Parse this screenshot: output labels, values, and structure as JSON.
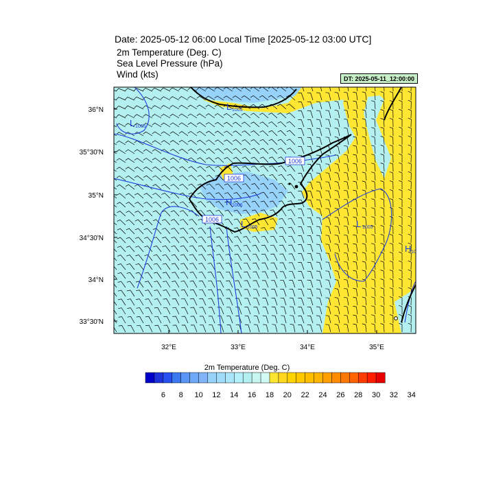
{
  "header": {
    "title": "Date: 2025-05-12  06:00 Local Time [2025-05-12  03:00 UTC]",
    "line1": "2m Temperature (Deg. C)",
    "line2": "Sea Level Pressure   (hPa)",
    "line3": "Wind   (kts)",
    "dt_badge": "DT: 2025-05-11_12:00:00"
  },
  "map": {
    "lat_labels": [
      "36°N",
      "35°30'N",
      "35°N",
      "34°30'N",
      "34°N",
      "33°30'N"
    ],
    "lon_labels": [
      "32°E",
      "33°E",
      "34°E",
      "35°E"
    ],
    "isobar_labels": [
      "1006",
      "1006",
      "1006"
    ],
    "pressure_marks": [
      {
        "symbol": "L",
        "value": "1005"
      },
      {
        "symbol": "L",
        "value": "1005"
      },
      {
        "symbol": "H",
        "value": "1006"
      },
      {
        "symbol": "L",
        "value": "1005"
      },
      {
        "symbol": "L",
        "value": "1005"
      },
      {
        "symbol": "H",
        "value": "10"
      }
    ],
    "colors": {
      "cool": "#b4f0f0",
      "cooler": "#96d2fa",
      "warm": "#ffe632",
      "isobar": "#1e3cdc",
      "coast": "#000000"
    }
  },
  "colorbar": {
    "title": "2m Temperature (Deg. C)",
    "colors": [
      "#0000c8",
      "#1e32dc",
      "#2850f0",
      "#3c78f0",
      "#5a96f5",
      "#6eaaf8",
      "#82b4fa",
      "#96d2fa",
      "#a0dcfa",
      "#aae6fa",
      "#b4f0fa",
      "#b4f0f0",
      "#c8f5f0",
      "#d2faf5",
      "#ffe632",
      "#ffd71e",
      "#ffd200",
      "#ffc800",
      "#ffbe00",
      "#ffb400",
      "#ffa000",
      "#ff8c00",
      "#ff7800",
      "#ff6400",
      "#ff3c00",
      "#ff1e00",
      "#e60000"
    ],
    "tick_labels": [
      "6",
      "8",
      "10",
      "12",
      "14",
      "16",
      "18",
      "20",
      "22",
      "24",
      "26",
      "28",
      "30",
      "32",
      "34"
    ]
  }
}
